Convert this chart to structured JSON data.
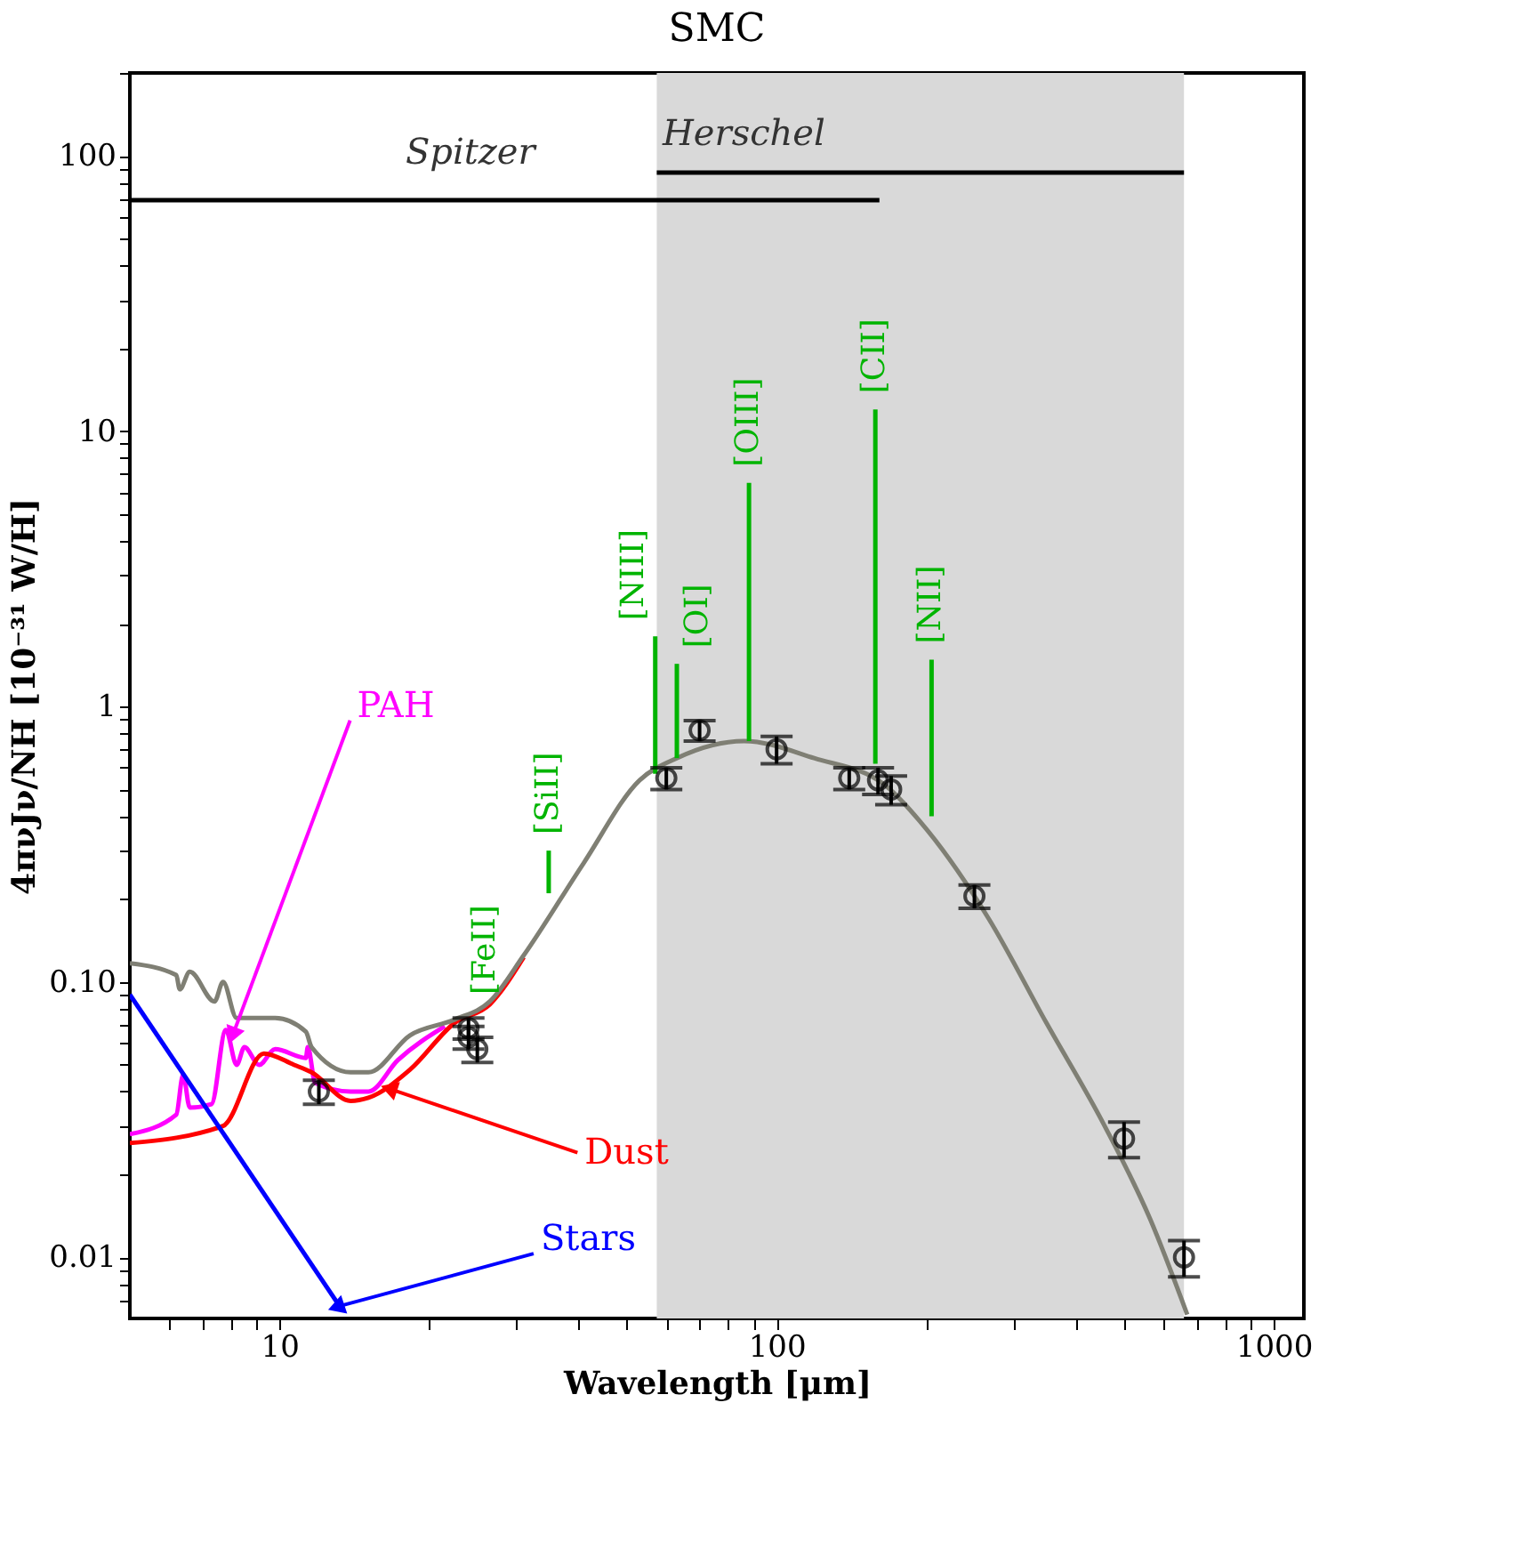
{
  "chart_data": {
    "type": "line",
    "title": "SMC",
    "xlabel": "Wavelength [μm]",
    "ylabel": "4πνJν/NH [10⁻³¹ W/H]",
    "log": "xy",
    "grid": false,
    "xlim": [
      5,
      1150
    ],
    "ylim": [
      0.006,
      200
    ],
    "xticks": [
      {
        "value": 6,
        "label": null
      },
      {
        "value": 7,
        "label": null
      },
      {
        "value": 8,
        "label": null
      },
      {
        "value": 9,
        "label": null
      },
      10,
      {
        "value": 20,
        "label": null
      },
      {
        "value": 30,
        "label": null
      },
      {
        "value": 40,
        "label": null
      },
      {
        "value": 50,
        "label": null
      },
      {
        "value": 60,
        "label": null
      },
      {
        "value": 70,
        "label": null
      },
      {
        "value": 80,
        "label": null
      },
      {
        "value": 90,
        "label": null
      },
      100,
      {
        "value": 200,
        "label": null
      },
      {
        "value": 300,
        "label": null
      },
      {
        "value": 400,
        "label": null
      },
      {
        "value": 500,
        "label": null
      },
      {
        "value": 600,
        "label": null
      },
      {
        "value": 700,
        "label": null
      },
      {
        "value": 800,
        "label": null
      },
      {
        "value": 900,
        "label": null
      },
      1000
    ],
    "yticks": [
      {
        "value": 0.007,
        "label": null
      },
      {
        "value": 0.008,
        "label": null
      },
      {
        "value": 0.009,
        "label": null
      },
      0.01,
      {
        "value": 0.02,
        "label": null
      },
      {
        "value": 0.03,
        "label": null
      },
      {
        "value": 0.04,
        "label": null
      },
      {
        "value": 0.05,
        "label": null
      },
      {
        "value": 0.06,
        "label": null
      },
      {
        "value": 0.07,
        "label": null
      },
      {
        "value": 0.08,
        "label": null
      },
      {
        "value": 0.09,
        "label": null
      },
      {
        "value": 0.1,
        "label": "0.10"
      },
      {
        "value": 0.2,
        "label": null
      },
      {
        "value": 0.3,
        "label": null
      },
      {
        "value": 0.4,
        "label": null
      },
      {
        "value": 0.5,
        "label": null
      },
      {
        "value": 0.6,
        "label": null
      },
      {
        "value": 0.7,
        "label": null
      },
      {
        "value": 0.8,
        "label": null
      },
      {
        "value": 0.9,
        "label": null
      },
      1,
      {
        "value": 2,
        "label": null
      },
      {
        "value": 3,
        "label": null
      },
      {
        "value": 4,
        "label": null
      },
      {
        "value": 5,
        "label": null
      },
      {
        "value": 6,
        "label": null
      },
      {
        "value": 7,
        "label": null
      },
      {
        "value": 8,
        "label": null
      },
      {
        "value": 9,
        "label": null
      },
      10,
      {
        "value": 20,
        "label": null
      },
      {
        "value": 30,
        "label": null
      },
      {
        "value": 40,
        "label": null
      },
      {
        "value": 50,
        "label": null
      },
      {
        "value": 60,
        "label": null
      },
      {
        "value": 70,
        "label": null
      },
      {
        "value": 80,
        "label": null
      },
      {
        "value": 90,
        "label": null
      },
      100,
      {
        "value": 200,
        "label": null
      }
    ],
    "bands": [
      {
        "axis": "x",
        "from": 57.4,
        "to": 660,
        "color": "#d9d9d9"
      }
    ],
    "series": [
      {
        "color": "#ff00ff",
        "x": [
          5,
          6.2,
          6.4,
          6.6,
          7.3,
          7.8,
          8.2,
          8.5,
          9.1,
          9.8,
          11.3,
          11.4,
          11.8,
          13.9,
          15.1,
          17.3,
          21.5
        ],
        "values": [
          0.028,
          0.033,
          0.046,
          0.035,
          0.036,
          0.067,
          0.05,
          0.058,
          0.05,
          0.057,
          0.053,
          0.058,
          0.043,
          0.04,
          0.04,
          0.052,
          0.069
        ]
      },
      {
        "color": "#ff0000",
        "x": [
          5,
          7.7,
          9.3,
          10.7,
          11.6,
          13.9,
          15.1,
          18.3,
          22.5,
          26.5,
          31
        ],
        "values": [
          0.026,
          0.03,
          0.055,
          0.05,
          0.047,
          0.037,
          0.038,
          0.048,
          0.071,
          0.083,
          0.123
        ]
      },
      {
        "color": "#0000ff",
        "x": [
          5,
          13.4
        ],
        "values": [
          0.09,
          0.0064
        ]
      },
      {
        "color": "#7f7f74",
        "x": [
          5,
          6.2,
          6.3,
          6.6,
          7.4,
          7.7,
          8.2,
          9.8,
          11.3,
          11.6,
          13.9,
          15.1,
          18.3,
          22.5,
          26.5,
          31,
          40.9,
          53,
          63,
          86,
          119,
          165,
          195,
          267,
          349,
          457,
          564,
          670
        ],
        "values": [
          0.117,
          0.106,
          0.094,
          0.109,
          0.085,
          0.1,
          0.074,
          0.074,
          0.066,
          0.058,
          0.047,
          0.047,
          0.064,
          0.073,
          0.085,
          0.125,
          0.27,
          0.54,
          0.65,
          0.75,
          0.65,
          0.52,
          0.38,
          0.17,
          0.071,
          0.03,
          0.0138,
          0.0062
        ]
      },
      {
        "color": "#000000",
        "x": [
          5,
          161
        ],
        "values": [
          69,
          69
        ]
      },
      {
        "color": "#000000",
        "x": [
          57.4,
          660
        ],
        "values": [
          87,
          87
        ]
      },
      {
        "name": "[SiII]",
        "color": "#00b400",
        "x": [
          34.8,
          34.8
        ],
        "values": [
          0.21,
          0.3
        ]
      },
      {
        "name": "[NIII]",
        "color": "#00b400",
        "x": [
          57,
          57
        ],
        "values": [
          0.57,
          1.8
        ]
      },
      {
        "name": "[OI]",
        "color": "#00b400",
        "x": [
          63,
          63
        ],
        "values": [
          0.65,
          1.43
        ]
      },
      {
        "name": "[OIII]",
        "color": "#00b400",
        "x": [
          88,
          88
        ],
        "values": [
          0.75,
          6.5
        ]
      },
      {
        "name": "[CII]",
        "color": "#00b400",
        "x": [
          158,
          158
        ],
        "values": [
          0.62,
          12
        ]
      },
      {
        "name": "[NII]",
        "color": "#00b400",
        "x": [
          205,
          205
        ],
        "values": [
          0.4,
          1.48
        ]
      },
      {
        "type": "scatter",
        "color": "#000000",
        "marker": "circle",
        "x": [
          12,
          24,
          24,
          25,
          60,
          70,
          100,
          140,
          160,
          170,
          250,
          500,
          660
        ],
        "values": [
          0.04,
          0.068,
          0.063,
          0.057,
          0.55,
          0.82,
          0.7,
          0.55,
          0.54,
          0.5,
          0.205,
          0.027,
          0.01
        ],
        "errors": [
          0.004,
          0.006,
          0.006,
          0.006,
          0.05,
          0.07,
          0.08,
          0.05,
          0.06,
          0.06,
          0.02,
          0.004,
          0.0015
        ]
      }
    ],
    "annotations": [
      {
        "text": "PAH",
        "x": 8.05,
        "y": 0.064
      },
      {
        "text": "Dust",
        "x": 16.6,
        "y": 0.041
      },
      {
        "text": "Stars",
        "x": 13,
        "y": 0.0066
      },
      "Spitzer",
      "Herschel",
      "[FeII]"
    ]
  }
}
